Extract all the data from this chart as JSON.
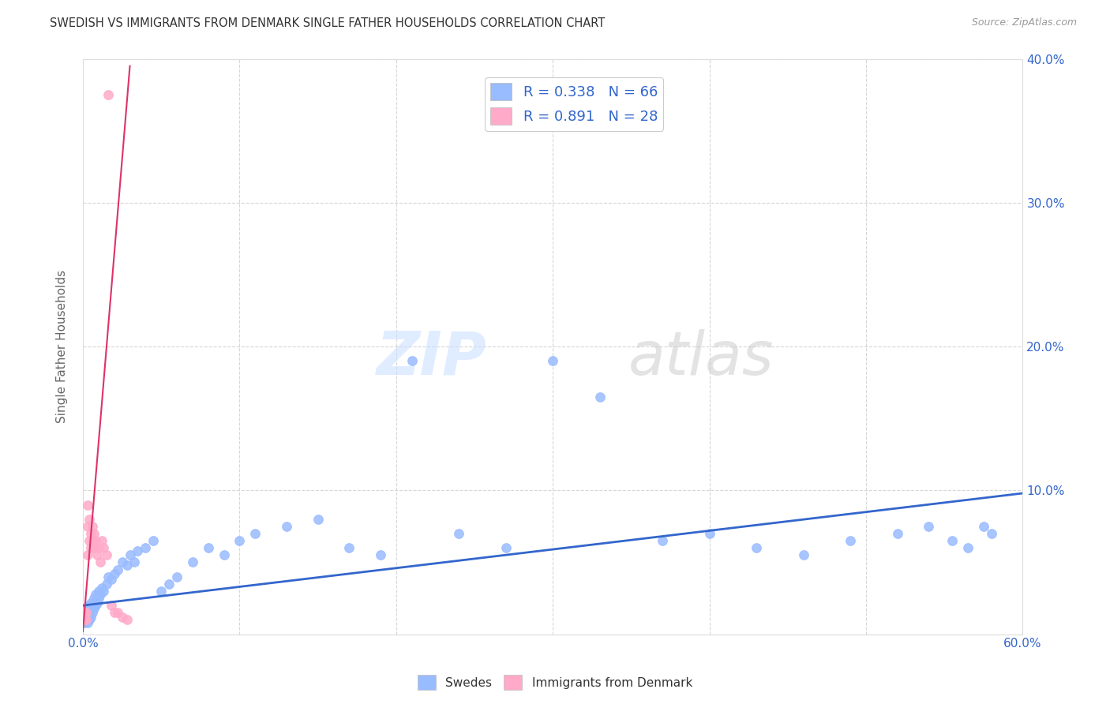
{
  "title": "SWEDISH VS IMMIGRANTS FROM DENMARK SINGLE FATHER HOUSEHOLDS CORRELATION CHART",
  "source": "Source: ZipAtlas.com",
  "ylabel": "Single Father Households",
  "xlim": [
    0.0,
    0.6
  ],
  "ylim": [
    0.0,
    0.4
  ],
  "swedes_R": 0.338,
  "swedes_N": 66,
  "denmark_R": 0.891,
  "denmark_N": 28,
  "swedes_color": "#99bbff",
  "denmark_color": "#ffaac8",
  "swedes_line_color": "#3366cc",
  "denmark_line_color": "#dd3366",
  "background_color": "#ffffff",
  "swedes_x": [
    0.001,
    0.001,
    0.002,
    0.002,
    0.002,
    0.003,
    0.003,
    0.003,
    0.004,
    0.004,
    0.004,
    0.005,
    0.005,
    0.005,
    0.006,
    0.006,
    0.007,
    0.007,
    0.008,
    0.008,
    0.009,
    0.01,
    0.01,
    0.011,
    0.012,
    0.013,
    0.015,
    0.016,
    0.018,
    0.02,
    0.022,
    0.025,
    0.028,
    0.03,
    0.033,
    0.035,
    0.04,
    0.045,
    0.05,
    0.055,
    0.06,
    0.07,
    0.08,
    0.09,
    0.1,
    0.11,
    0.13,
    0.15,
    0.17,
    0.19,
    0.21,
    0.24,
    0.27,
    0.3,
    0.33,
    0.37,
    0.4,
    0.43,
    0.46,
    0.49,
    0.52,
    0.54,
    0.555,
    0.565,
    0.575,
    0.58
  ],
  "swedes_y": [
    0.008,
    0.012,
    0.01,
    0.015,
    0.018,
    0.008,
    0.012,
    0.018,
    0.01,
    0.015,
    0.02,
    0.012,
    0.018,
    0.022,
    0.015,
    0.02,
    0.018,
    0.025,
    0.02,
    0.028,
    0.022,
    0.025,
    0.03,
    0.028,
    0.032,
    0.03,
    0.035,
    0.04,
    0.038,
    0.042,
    0.045,
    0.05,
    0.048,
    0.055,
    0.05,
    0.058,
    0.06,
    0.065,
    0.03,
    0.035,
    0.04,
    0.05,
    0.06,
    0.055,
    0.065,
    0.07,
    0.075,
    0.08,
    0.06,
    0.055,
    0.19,
    0.07,
    0.06,
    0.19,
    0.165,
    0.065,
    0.07,
    0.06,
    0.055,
    0.065,
    0.07,
    0.075,
    0.065,
    0.06,
    0.075,
    0.07
  ],
  "denmark_x": [
    0.001,
    0.001,
    0.002,
    0.002,
    0.003,
    0.003,
    0.003,
    0.004,
    0.004,
    0.005,
    0.005,
    0.006,
    0.006,
    0.007,
    0.007,
    0.008,
    0.009,
    0.01,
    0.011,
    0.012,
    0.013,
    0.015,
    0.018,
    0.02,
    0.022,
    0.025,
    0.028,
    0.016
  ],
  "denmark_y": [
    0.01,
    0.015,
    0.01,
    0.015,
    0.055,
    0.075,
    0.09,
    0.065,
    0.08,
    0.06,
    0.07,
    0.075,
    0.065,
    0.07,
    0.06,
    0.065,
    0.055,
    0.06,
    0.05,
    0.065,
    0.06,
    0.055,
    0.02,
    0.015,
    0.015,
    0.012,
    0.01,
    0.375
  ],
  "swedes_line_x": [
    0.0,
    0.6
  ],
  "swedes_line_y": [
    0.02,
    0.098
  ],
  "denmark_line_x": [
    0.0,
    0.03
  ],
  "denmark_line_y": [
    0.002,
    0.395
  ]
}
